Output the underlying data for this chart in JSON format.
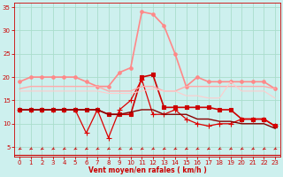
{
  "background_color": "#cdf0ee",
  "grid_color": "#aaddcc",
  "xlabel": "Vent moyen/en rafales ( km/h )",
  "xlim": [
    -0.5,
    23.5
  ],
  "ylim": [
    3,
    36
  ],
  "yticks": [
    5,
    10,
    15,
    20,
    25,
    30,
    35
  ],
  "xticks": [
    0,
    1,
    2,
    3,
    4,
    5,
    6,
    7,
    8,
    9,
    10,
    11,
    12,
    13,
    14,
    15,
    16,
    17,
    18,
    19,
    20,
    21,
    22,
    23
  ],
  "lines": [
    {
      "x": [
        0,
        1,
        2,
        3,
        4,
        5,
        6,
        7,
        8,
        9,
        10,
        11,
        12,
        13,
        14,
        15,
        16,
        17,
        18,
        19,
        20,
        21,
        22,
        23
      ],
      "y": [
        13,
        13,
        13,
        13,
        13,
        13,
        13,
        13,
        12,
        12,
        12,
        20,
        20.5,
        13.5,
        13.5,
        13.5,
        13.5,
        13.5,
        13,
        13,
        11,
        11,
        11,
        9.5
      ],
      "color": "#cc0000",
      "lw": 1.2,
      "marker": "s",
      "ms": 2.5
    },
    {
      "x": [
        0,
        1,
        2,
        3,
        4,
        5,
        6,
        7,
        8,
        9,
        10,
        11,
        12,
        13,
        14,
        15,
        16,
        17,
        18,
        19,
        20,
        21,
        22,
        23
      ],
      "y": [
        13,
        13,
        13,
        13,
        13,
        13,
        8,
        13,
        7,
        13,
        15,
        19.5,
        12,
        12,
        13,
        11,
        10,
        9.5,
        10,
        10,
        11,
        11,
        11,
        9.5
      ],
      "color": "#dd0000",
      "lw": 0.9,
      "marker": "+",
      "ms": 4
    },
    {
      "x": [
        0,
        1,
        2,
        3,
        4,
        5,
        6,
        7,
        8,
        9,
        10,
        11,
        12,
        13,
        14,
        15,
        16,
        17,
        18,
        19,
        20,
        21,
        22,
        23
      ],
      "y": [
        13,
        13,
        13,
        13,
        13,
        13,
        13,
        13,
        12,
        12,
        12.5,
        13,
        13,
        12,
        12,
        12,
        11,
        11,
        10.5,
        10.5,
        10,
        10,
        10,
        9
      ],
      "color": "#880000",
      "lw": 1.0,
      "marker": null,
      "ms": 0
    },
    {
      "x": [
        0,
        1,
        2,
        3,
        4,
        5,
        6,
        7,
        8,
        9,
        10,
        11,
        12,
        13,
        14,
        15,
        16,
        17,
        18,
        19,
        20,
        21,
        22,
        23
      ],
      "y": [
        19,
        20,
        20,
        20,
        20,
        20,
        19,
        18,
        18,
        21,
        22,
        34,
        33.5,
        31,
        25,
        18,
        20,
        19,
        19,
        19,
        19,
        19,
        19,
        17.5
      ],
      "color": "#ff8888",
      "lw": 1.2,
      "marker": "o",
      "ms": 2.5
    },
    {
      "x": [
        0,
        1,
        2,
        3,
        4,
        5,
        6,
        7,
        8,
        9,
        10,
        11,
        12,
        13,
        14,
        15,
        16,
        17,
        18,
        19,
        20,
        21,
        22,
        23
      ],
      "y": [
        17.5,
        18,
        18,
        18,
        18,
        18,
        18,
        18,
        17,
        17,
        17,
        18,
        18,
        17,
        17,
        18,
        18,
        18,
        18,
        18,
        18,
        18,
        18,
        17.5
      ],
      "color": "#ffaaaa",
      "lw": 1.0,
      "marker": null,
      "ms": 0
    },
    {
      "x": [
        0,
        1,
        2,
        3,
        4,
        5,
        6,
        7,
        8,
        9,
        10,
        11,
        12,
        13,
        14,
        15,
        16,
        17,
        18,
        19,
        20,
        21,
        22,
        23
      ],
      "y": [
        17,
        17,
        17,
        17,
        17,
        17,
        17,
        17,
        16.5,
        16.5,
        16.5,
        17,
        17.5,
        17,
        17,
        16,
        16,
        15.5,
        15.5,
        19,
        17,
        17,
        17,
        15.5
      ],
      "color": "#ffcccc",
      "lw": 0.8,
      "marker": null,
      "ms": 0
    }
  ],
  "arrow_color": "#cc0000",
  "tick_color": "#cc0000",
  "label_color": "#cc0000",
  "spine_color": "#cc0000"
}
